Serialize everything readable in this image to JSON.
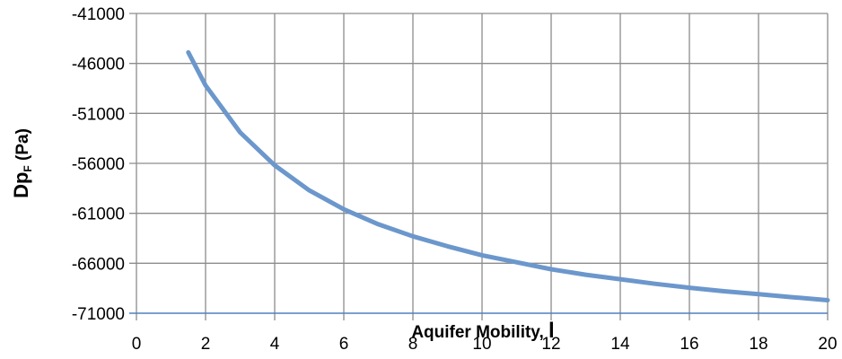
{
  "chart_data": {
    "type": "line",
    "xlabel_text": "Aquifer Mobility, ",
    "xlabel_symbol": "l",
    "ylabel_main": "Dp",
    "ylabel_sub": "F",
    "ylabel_unit": " (Pa)",
    "xlim": [
      0,
      20
    ],
    "ylim": [
      -71000,
      -41000
    ],
    "x_ticks": [
      0,
      2,
      4,
      6,
      8,
      10,
      12,
      14,
      16,
      18,
      20
    ],
    "y_ticks": [
      -41000,
      -46000,
      -51000,
      -56000,
      -61000,
      -66000,
      -71000
    ],
    "grid": true,
    "series": [
      {
        "color": "#6b97cc",
        "x": [
          1.5,
          2,
          3,
          4,
          5,
          6,
          7,
          8,
          9,
          10,
          11,
          12,
          13,
          14,
          15,
          16,
          17,
          18,
          19,
          20
        ],
        "y": [
          -44900,
          -48200,
          -52900,
          -56200,
          -58700,
          -60600,
          -62100,
          -63300,
          -64300,
          -65200,
          -65900,
          -66600,
          -67150,
          -67600,
          -68050,
          -68450,
          -68800,
          -69100,
          -69400,
          -69700
        ]
      }
    ]
  }
}
